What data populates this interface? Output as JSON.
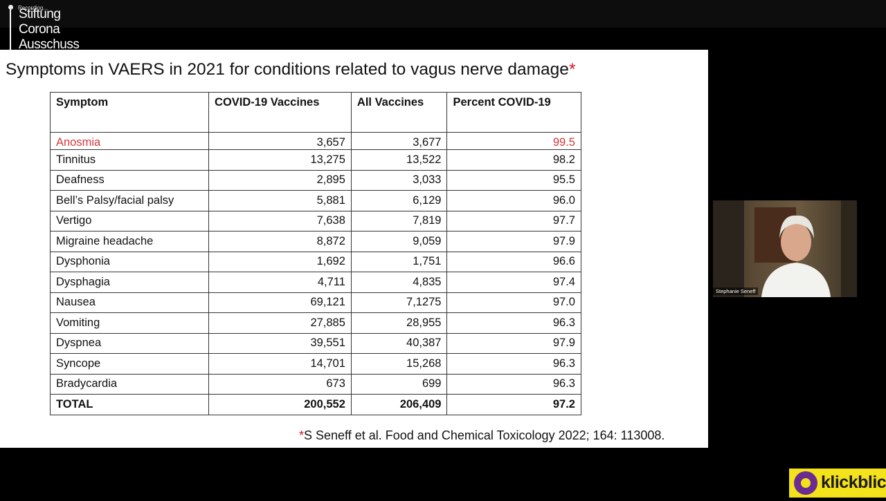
{
  "overlay": {
    "recording": "Recording...",
    "logo": [
      "Stiftung",
      "Corona",
      "Ausschuss"
    ]
  },
  "slide": {
    "title": "Symptoms in VAERS in 2021 for conditions related to vagus nerve damage",
    "title_mark": "*",
    "table": {
      "header": [
        "Symptom",
        "COVID-19 Vaccines",
        "All Vaccines",
        "Percent COVID-19"
      ],
      "rows": [
        [
          "Anosmia",
          "3,657",
          "3,677",
          "99.5"
        ],
        [
          "Tinnitus",
          "13,275",
          "13,522",
          "98.2"
        ],
        [
          "Deafness",
          "2,895",
          "3,033",
          "95.5"
        ],
        [
          "Bell’s Palsy/facial palsy",
          "5,881",
          "6,129",
          "96.0"
        ],
        [
          "Vertigo",
          "7,638",
          "7,819",
          "97.7"
        ],
        [
          "Migraine headache",
          "8,872",
          "9,059",
          "97.9"
        ],
        [
          "Dysphonia",
          "1,692",
          "1,751",
          "96.6"
        ],
        [
          "Dysphagia",
          "4,711",
          "4,835",
          "97.4"
        ],
        [
          "Nausea",
          "69,121",
          "7,1275",
          "97.0"
        ],
        [
          "Vomiting",
          "27,885",
          "28,955",
          "96.3"
        ],
        [
          "Dyspnea",
          "39,551",
          "40,387",
          "97.9"
        ],
        [
          "Syncope",
          "14,701",
          "15,268",
          "96.3"
        ],
        [
          "Bradycardia",
          "673",
          "699",
          "96.3"
        ]
      ],
      "total": [
        "TOTAL",
        "200,552",
        "206,409",
        "97.2"
      ]
    },
    "footnote_mark": "*",
    "footnote": "S Seneff et al. Food and Chemical Toxicology 2022; 164: 113008."
  },
  "participant": {
    "name": "Stephanie Seneff"
  },
  "watermark": "klickblick"
}
